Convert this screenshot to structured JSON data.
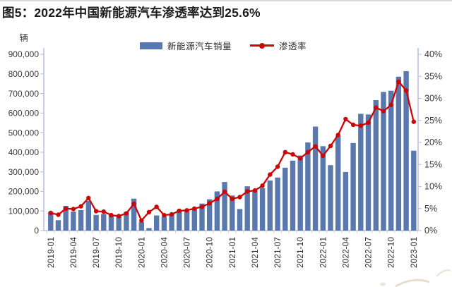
{
  "title": "图5：2022年中国新能源汽车渗透率达到25.6%",
  "colors": {
    "bar": "#5878ae",
    "line": "#cc0606",
    "axis_line": "#a9b6d2",
    "axis_tick": "#bcc6dd",
    "x_tick": "#ccd4e6",
    "axis_text": "#3a3a3a",
    "x_label_text": "#2e2e2e",
    "title_text": "#1c1c1c"
  },
  "chart_data": {
    "type": "bar",
    "subtype": "bar-line combo, dual axis",
    "title": "2022年中国新能源汽车渗透率达到25.6%",
    "categories": [
      "2019-01",
      "2019-02",
      "2019-03",
      "2019-04",
      "2019-05",
      "2019-06",
      "2019-07",
      "2019-08",
      "2019-09",
      "2019-10",
      "2019-11",
      "2019-12",
      "2020-01",
      "2020-02",
      "2020-03",
      "2020-04",
      "2020-05",
      "2020-06",
      "2020-07",
      "2020-08",
      "2020-09",
      "2020-10",
      "2020-11",
      "2020-12",
      "2021-01",
      "2021-02",
      "2021-03",
      "2021-04",
      "2021-05",
      "2021-06",
      "2021-07",
      "2021-08",
      "2021-09",
      "2021-10",
      "2021-11",
      "2021-12",
      "2022-01",
      "2022-02",
      "2022-03",
      "2022-04",
      "2022-05",
      "2022-06",
      "2022-07",
      "2022-08",
      "2022-09",
      "2022-10",
      "2022-11",
      "2022-12",
      "2023-01"
    ],
    "series": [
      {
        "name": "新能源汽车销量",
        "type": "bar",
        "axis": "left",
        "unit": "辆",
        "values": [
          95700,
          52900,
          126000,
          97000,
          104400,
          152000,
          80000,
          85000,
          80000,
          75000,
          95000,
          163000,
          44000,
          12900,
          77000,
          72000,
          82000,
          104000,
          98000,
          109000,
          138000,
          160000,
          200000,
          248000,
          179000,
          110000,
          226000,
          206000,
          217000,
          256000,
          271000,
          321000,
          357000,
          383000,
          450000,
          531000,
          431000,
          334000,
          484000,
          299000,
          447000,
          596000,
          593000,
          666000,
          708000,
          714000,
          786000,
          814000,
          408000
        ]
      },
      {
        "name": "渗透率",
        "type": "line",
        "axis": "right",
        "unit": "%",
        "values": [
          4.0,
          3.6,
          5.0,
          4.9,
          5.5,
          7.4,
          4.4,
          4.3,
          3.5,
          3.3,
          3.9,
          6.1,
          2.3,
          4.2,
          5.4,
          3.5,
          3.7,
          4.5,
          4.6,
          5.0,
          5.4,
          6.2,
          7.2,
          8.8,
          7.2,
          7.6,
          8.9,
          9.1,
          10.2,
          12.7,
          14.5,
          17.8,
          17.3,
          16.4,
          17.8,
          19.1,
          17.0,
          19.2,
          21.7,
          25.3,
          24.0,
          23.8,
          24.5,
          27.9,
          27.1,
          28.5,
          33.8,
          31.8,
          24.7
        ]
      }
    ],
    "left_axis": {
      "label": "辆",
      "min": 0,
      "max": 900000,
      "step": 100000,
      "tick_labels": [
        "900,000",
        "800,000",
        "700,000",
        "600,000",
        "500,000",
        "400,000",
        "300,000",
        "200,000",
        "100,000",
        "0"
      ]
    },
    "right_axis": {
      "min": 0,
      "max": 40,
      "step": 5,
      "tick_labels": [
        "40%",
        "35%",
        "30%",
        "25%",
        "20%",
        "15%",
        "10%",
        "5%",
        "0%"
      ]
    },
    "x_axis": {
      "shown_tick_labels": [
        "2019-01",
        "2019-04",
        "2019-07",
        "2019-10",
        "2020-01",
        "2020-04",
        "2020-07",
        "2020-10",
        "2021-01",
        "2021-04",
        "2021-07",
        "2021-10",
        "2022-01",
        "2022-04",
        "2022-07",
        "2022-10",
        "2023-01"
      ],
      "label_every_n_months": 3,
      "label_rotation_deg": 90
    },
    "grid": false,
    "legend_position": "top-center"
  }
}
